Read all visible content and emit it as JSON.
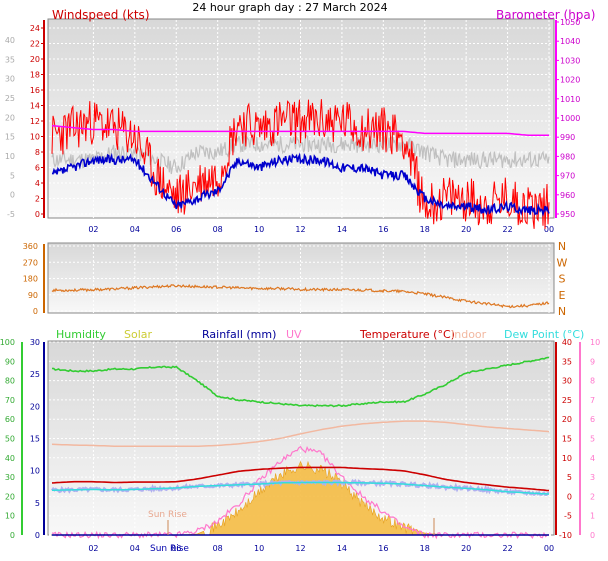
{
  "title": "24 hour graph day : 27 March 2024",
  "x_ticks": [
    "02",
    "04",
    "06",
    "08",
    "10",
    "12",
    "14",
    "16",
    "18",
    "20",
    "22",
    "00"
  ],
  "panel1": {
    "left_label": "Windspeed (kts)",
    "right_label": "Barometer (hpa)",
    "left_ticks": [
      "-5",
      "0",
      "5",
      "10",
      "15",
      "20",
      "25",
      "30",
      "35",
      "40"
    ],
    "kts_ticks": [
      "0",
      "2",
      "4",
      "6",
      "8",
      "10",
      "12",
      "14",
      "16",
      "18",
      "20",
      "22",
      "24"
    ],
    "right_ticks": [
      "950",
      "960",
      "970",
      "980",
      "990",
      "1000",
      "1010",
      "1020",
      "1030",
      "1040",
      "1050"
    ]
  },
  "panel2": {
    "left_ticks": [
      "0",
      "90",
      "180",
      "270",
      "360"
    ],
    "right_ticks": [
      "N",
      "E",
      "S",
      "W",
      "N"
    ]
  },
  "panel3": {
    "legend": [
      {
        "label": "Humidity",
        "color": "#33cc33"
      },
      {
        "label": "Solar",
        "color": "#cccc33"
      },
      {
        "label": "Rainfall (mm)",
        "color": "#000099"
      },
      {
        "label": "UV",
        "color": "#ff77cc"
      },
      {
        "label": "Temperature (°C)",
        "color": "#cc0000"
      },
      {
        "label": "Indoor",
        "color": "#f2b8a0"
      },
      {
        "label": "Dew Point (°C)",
        "color": "#33dddd"
      }
    ],
    "humidity_ticks": [
      "0",
      "10",
      "20",
      "30",
      "40",
      "50",
      "60",
      "70",
      "80",
      "90",
      "100"
    ],
    "rain_ticks": [
      "0",
      "5",
      "10",
      "15",
      "20",
      "25",
      "30"
    ],
    "temp_ticks": [
      "-10",
      "-5",
      "0",
      "5",
      "10",
      "15",
      "20",
      "25",
      "30",
      "35",
      "40"
    ],
    "uv_ticks": [
      "0",
      "1",
      "2",
      "3",
      "4",
      "5",
      "6",
      "7",
      "8",
      "9",
      "10"
    ],
    "annotations": {
      "sun_rise": "Sun Rise",
      "sun_rise_axis": "Sun Rise"
    }
  },
  "chart_data": [
    {
      "type": "line",
      "title": "24 hour graph day : 27 March 2024",
      "x_unit": "hour",
      "x": [
        0,
        1,
        2,
        3,
        4,
        5,
        6,
        7,
        8,
        9,
        10,
        11,
        12,
        13,
        14,
        15,
        16,
        17,
        18,
        19,
        20,
        21,
        22,
        23,
        24
      ],
      "series": [
        {
          "name": "Windspeed (kts)",
          "axis": "kts",
          "color": "#ff0000",
          "values": [
            10,
            11,
            12,
            11,
            10,
            5,
            2,
            4,
            5,
            12,
            11,
            12,
            12,
            12,
            12,
            11,
            11,
            10,
            1,
            2,
            2,
            1,
            2,
            1,
            1
          ]
        },
        {
          "name": "Barometer (hpa)",
          "axis": "hpa",
          "color": "#ff00ff",
          "values": [
            996,
            995,
            994,
            994,
            993,
            993,
            993,
            993,
            993,
            993,
            993,
            993,
            993,
            993,
            993,
            993,
            993,
            993,
            992,
            992,
            992,
            992,
            992,
            991,
            991
          ]
        }
      ],
      "unnamed_series": [
        {
          "color": "#0000cc",
          "axis": "kts",
          "values": [
            5,
            6,
            7,
            7,
            7,
            4,
            1,
            2,
            3,
            7,
            6,
            7,
            7,
            7,
            6,
            6,
            5,
            5,
            2,
            1,
            1,
            0.5,
            1,
            0.5,
            0.5
          ]
        },
        {
          "color": "#c0c0c0",
          "axis": "kts",
          "values": [
            7,
            7,
            7,
            8,
            8,
            7,
            6,
            8,
            8,
            9,
            9,
            9,
            9,
            9,
            9,
            9,
            9,
            9,
            8,
            7,
            7,
            7,
            7,
            7,
            7
          ]
        }
      ]
    },
    {
      "type": "line",
      "x": [
        0,
        1,
        2,
        3,
        4,
        5,
        6,
        7,
        8,
        9,
        10,
        11,
        12,
        13,
        14,
        15,
        16,
        17,
        18,
        19,
        20,
        21,
        22,
        23,
        24
      ],
      "series": [
        {
          "name": "Wind direction",
          "color": "#dd7722",
          "values": [
            115,
            115,
            118,
            122,
            128,
            135,
            140,
            135,
            132,
            128,
            125,
            124,
            120,
            118,
            118,
            116,
            112,
            108,
            95,
            75,
            55,
            40,
            25,
            30,
            45
          ]
        }
      ]
    },
    {
      "type": "line",
      "x": [
        0,
        1,
        2,
        3,
        4,
        5,
        6,
        7,
        8,
        9,
        10,
        11,
        12,
        13,
        14,
        15,
        16,
        17,
        18,
        19,
        20,
        21,
        22,
        23,
        24
      ],
      "series": [
        {
          "name": "Humidity",
          "axis": "%",
          "color": "#33cc33",
          "values": [
            86,
            85,
            85,
            86,
            86,
            87,
            87,
            80,
            72,
            70,
            69,
            68,
            67,
            67,
            67,
            68,
            69,
            69,
            73,
            78,
            84,
            86,
            88,
            90,
            92
          ]
        },
        {
          "name": "Temperature (°C)",
          "axis": "°C",
          "color": "#cc0000",
          "values": [
            3.5,
            3.8,
            3.8,
            3.6,
            3.7,
            3.7,
            3.8,
            4.5,
            5.5,
            6.5,
            7.0,
            7.3,
            7.5,
            7.5,
            7.5,
            7.2,
            7.0,
            6.6,
            5.6,
            4.4,
            3.6,
            3.0,
            2.4,
            2.0,
            1.5
          ]
        },
        {
          "name": "Indoor",
          "axis": "°C",
          "color": "#f2b8a0",
          "values": [
            13.5,
            13.3,
            13.2,
            13.0,
            13.0,
            13.0,
            13.0,
            13.0,
            13.2,
            13.6,
            14.2,
            15.0,
            16.2,
            17.3,
            18.2,
            18.8,
            19.2,
            19.5,
            19.5,
            19.2,
            18.6,
            18.0,
            17.6,
            17.2,
            16.8
          ]
        },
        {
          "name": "Dew Point (°C)",
          "axis": "°C",
          "color": "#33dddd",
          "values": [
            1.6,
            1.7,
            1.8,
            1.7,
            1.8,
            2.0,
            2.2,
            2.6,
            2.8,
            3.0,
            3.2,
            3.5,
            3.6,
            3.6,
            3.6,
            3.5,
            3.4,
            3.2,
            2.8,
            2.4,
            2.1,
            1.7,
            1.2,
            0.9,
            0.6
          ]
        },
        {
          "name": "Solar",
          "color": "#f5b83a",
          "note": "relative radiation, fraction of panel height",
          "values": [
            0,
            0,
            0,
            0,
            0,
            0,
            0,
            0.05,
            0.5,
            1.2,
            2.2,
            3.1,
            3.6,
            3.4,
            2.7,
            1.6,
            0.9,
            0.4,
            0.1,
            0,
            0,
            0,
            0,
            0,
            0
          ]
        },
        {
          "name": "UV",
          "axis": "uv",
          "color": "#ff77cc",
          "values": [
            0,
            0,
            0,
            0,
            0,
            0,
            0,
            0.2,
            0.7,
            1.6,
            2.8,
            3.8,
            4.5,
            4.2,
            3.0,
            2.0,
            1.2,
            0.4,
            0,
            0,
            0,
            0,
            0,
            0,
            0
          ]
        },
        {
          "name": "Rainfall (mm)",
          "axis": "mm",
          "color": "#000099",
          "values": [
            0,
            0,
            0,
            0,
            0,
            0,
            0,
            0,
            0,
            0,
            0,
            0,
            0,
            0,
            0,
            0,
            0,
            0,
            0,
            0,
            0,
            0,
            0,
            0,
            0
          ]
        }
      ]
    }
  ]
}
